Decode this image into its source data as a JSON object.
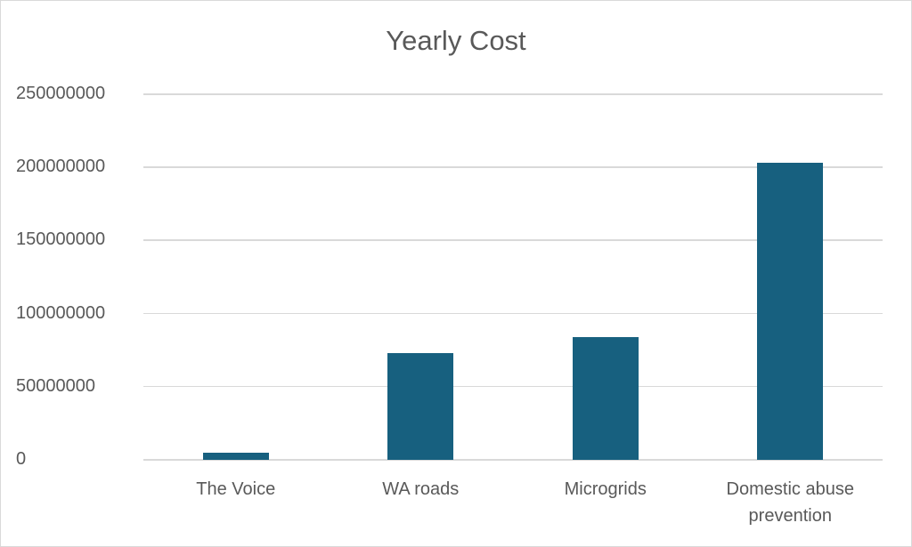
{
  "chart_data": {
    "type": "bar",
    "title": "Yearly Cost",
    "xlabel": "",
    "ylabel": "",
    "categories": [
      "The Voice",
      "WA roads",
      "Microgrids",
      "Domestic abuse prevention"
    ],
    "category_lines": [
      [
        "The Voice"
      ],
      [
        "WA roads"
      ],
      [
        "Microgrids"
      ],
      [
        "Domestic abuse",
        "prevention"
      ]
    ],
    "values": [
      5000000,
      73000000,
      84000000,
      203000000
    ],
    "ylim": [
      0,
      250000000
    ],
    "yticks": [
      "0",
      "50000000",
      "100000000",
      "150000000",
      "200000000",
      "250000000"
    ],
    "grid": true,
    "legend": null,
    "bar_color": "#17607f"
  }
}
